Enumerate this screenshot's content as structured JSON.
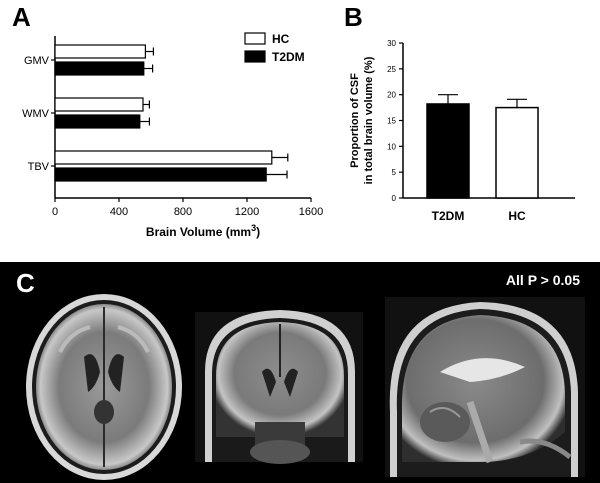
{
  "panel_a": {
    "letter": "A"
  },
  "panel_b": {
    "letter": "B"
  },
  "panel_c": {
    "letter": "C",
    "stat_text": "All P > 0.05",
    "image_names": [
      "axial-brain-mri",
      "coronal-brain-mri",
      "sagittal-brain-mri"
    ]
  },
  "chart_data": [
    {
      "type": "bar",
      "orientation": "horizontal",
      "categories": [
        "GMV",
        "WMV",
        "TBV"
      ],
      "series": [
        {
          "name": "HC",
          "values": [
            565,
            550,
            1355
          ],
          "errors": [
            50,
            40,
            100
          ],
          "color": "#ffffff"
        },
        {
          "name": "T2DM",
          "values": [
            555,
            530,
            1320
          ],
          "errors": [
            55,
            60,
            130
          ],
          "color": "#000000"
        }
      ],
      "xlabel": "Brain Volume (mm",
      "xlabel_sup": "3",
      "xlabel_end": ")",
      "xlim": [
        0,
        1600
      ],
      "xticks": [
        "0",
        "400",
        "800",
        "1200",
        "1600"
      ],
      "legend": "top-right",
      "grid": false
    },
    {
      "type": "bar",
      "categories": [
        "T2DM",
        "HC"
      ],
      "values": [
        18.2,
        17.5
      ],
      "errors": [
        1.8,
        1.6
      ],
      "colors": [
        "#000000",
        "#ffffff"
      ],
      "ylabel_line1": "Proportion of CSF",
      "ylabel_line2": "in total brain volume (%)",
      "ylim": [
        0,
        30
      ],
      "yticks": [
        "0",
        "5",
        "10",
        "15",
        "20",
        "25",
        "30"
      ],
      "grid": false
    }
  ]
}
